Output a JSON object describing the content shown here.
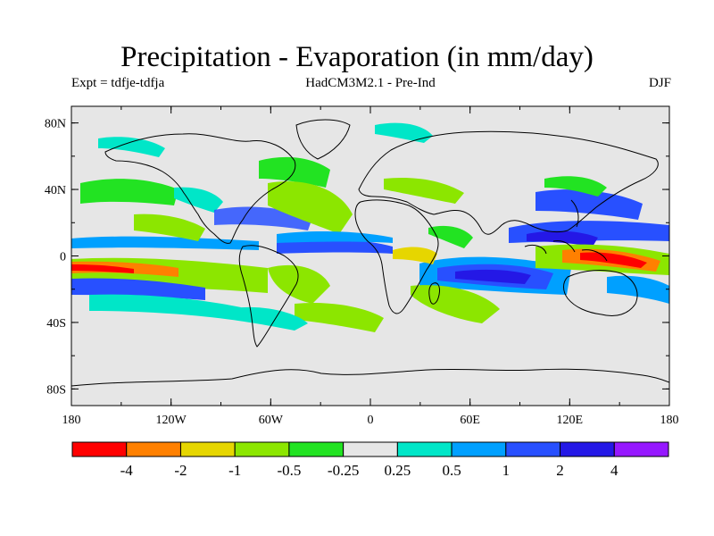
{
  "title": "Precipitation - Evaporation (in mm/day)",
  "subtitle_left": "Expt = tdfje-tdfja",
  "subtitle_center": "HadCM3M2.1 - Pre-Ind",
  "subtitle_right": "DJF",
  "lat_ticks": [
    "80N",
    "40N",
    "0",
    "40S",
    "80S"
  ],
  "lon_ticks": [
    "180",
    "120W",
    "60W",
    "0",
    "60E",
    "120E",
    "180"
  ],
  "legend": {
    "colors": [
      "#ff0000",
      "#ff8000",
      "#e6d600",
      "#8ce600",
      "#22e322",
      "#e6e6e6",
      "#00e6c8",
      "#00a0ff",
      "#2850ff",
      "#2418e6",
      "#9618ff"
    ],
    "labels": [
      "-4",
      "-2",
      "-1",
      "-0.5",
      "-0.25",
      "0.25",
      "0.5",
      "1",
      "2",
      "4"
    ]
  },
  "colors": {
    "ocean_background": "#e6e6e6",
    "coastline": "#000000"
  }
}
